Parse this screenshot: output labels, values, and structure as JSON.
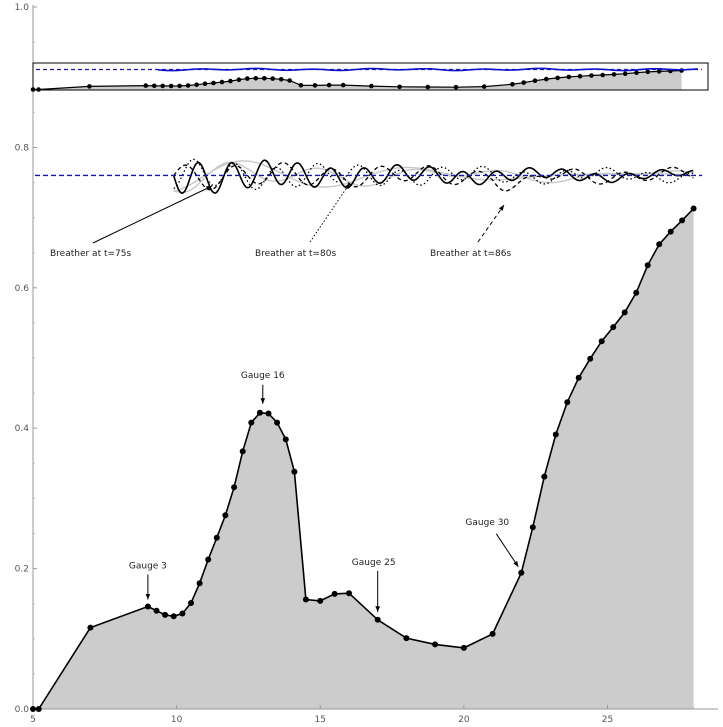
{
  "chart_data": {
    "type": "area",
    "xlim": [
      5,
      28.5
    ],
    "ylim": [
      0,
      1.0
    ],
    "x_ticks": [
      "5",
      "10",
      "15",
      "20",
      "25"
    ],
    "y_ticks": [
      "0.0",
      "0.2",
      "0.4",
      "0.6",
      "0.8",
      "1.0"
    ],
    "grid": false,
    "colors": {
      "fill": "#cccccc",
      "line": "#000000",
      "inset_line": "#1010cc",
      "mean_level": "#1a1a99"
    },
    "bathymetry": {
      "x": [
        5.0,
        5.2,
        7.0,
        9.0,
        9.3,
        9.6,
        9.9,
        10.2,
        10.5,
        10.8,
        11.1,
        11.4,
        11.7,
        12.0,
        12.3,
        12.6,
        12.9,
        13.2,
        13.5,
        13.8,
        14.1,
        14.5,
        15.0,
        15.5,
        16.0,
        17.0,
        18.0,
        19.0,
        20.0,
        21.0,
        22.0,
        22.4,
        22.8,
        23.2,
        23.6,
        24.0,
        24.4,
        24.8,
        25.2,
        25.6,
        26.0,
        26.4,
        26.8,
        27.2,
        27.6,
        28.0
      ],
      "y": [
        0.0,
        0.0,
        0.116,
        0.146,
        0.14,
        0.134,
        0.132,
        0.136,
        0.151,
        0.179,
        0.213,
        0.244,
        0.276,
        0.316,
        0.367,
        0.408,
        0.422,
        0.421,
        0.408,
        0.384,
        0.338,
        0.156,
        0.154,
        0.164,
        0.165,
        0.127,
        0.101,
        0.092,
        0.087,
        0.107,
        0.194,
        0.259,
        0.331,
        0.391,
        0.437,
        0.472,
        0.499,
        0.524,
        0.544,
        0.565,
        0.593,
        0.632,
        0.662,
        0.68,
        0.696,
        0.713
      ]
    },
    "still_water_level": 0.76,
    "breathers": [
      {
        "label": "Breather at t=75s",
        "style": "solid"
      },
      {
        "label": "Breather at t=80s",
        "style": "dotted"
      },
      {
        "label": "Breather at t=86s",
        "style": "dashed"
      }
    ],
    "annotations": [
      {
        "text": "Gauge 3",
        "x": 9.0,
        "y": 0.146
      },
      {
        "text": "Gauge 16",
        "x": 13.0,
        "y": 0.422
      },
      {
        "text": "Gauge 25",
        "x": 17.0,
        "y": 0.127
      },
      {
        "text": "Gauge 30",
        "x": 22.0,
        "y": 0.194
      }
    ]
  }
}
